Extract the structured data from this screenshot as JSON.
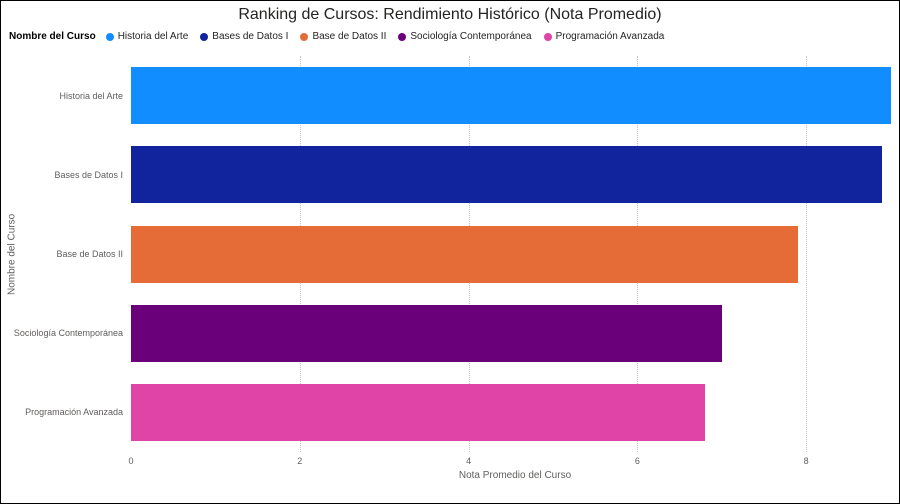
{
  "legend": {
    "title": "Nombre del Curso"
  },
  "chart_data": {
    "type": "bar",
    "orientation": "horizontal",
    "title": "Ranking de Cursos: Rendimiento Histórico (Nota Promedio)",
    "xlabel": "Nota Promedio del Curso",
    "ylabel": "Nombre del Curso",
    "xlim": [
      0,
      9.1
    ],
    "x_ticks": [
      0,
      2,
      4,
      6,
      8
    ],
    "grid": true,
    "legend_position": "top-left",
    "categories": [
      "Historia del Arte",
      "Bases de Datos I",
      "Base de Datos II",
      "Sociología Contemporánea",
      "Programación Avanzada"
    ],
    "values": [
      9.0,
      8.9,
      7.9,
      7.0,
      6.8
    ],
    "colors": [
      "#118DFF",
      "#12239E",
      "#E66C37",
      "#6B007B",
      "#E044A7"
    ]
  }
}
